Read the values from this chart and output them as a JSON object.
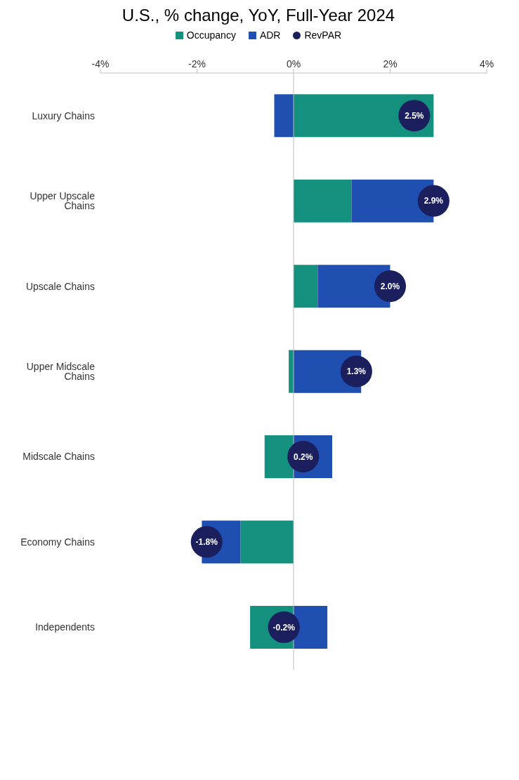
{
  "chart_data": {
    "type": "bar",
    "title": "U.S., % change, YoY, Full-Year 2024",
    "orientation": "horizontal",
    "stacked": true,
    "categories": [
      "Luxury Chains",
      "Upper Upscale Chains",
      "Upscale Chains",
      "Upper Midscale Chains",
      "Midscale Chains",
      "Economy Chains",
      "Independents"
    ],
    "series": [
      {
        "name": "Occupancy",
        "color": "#14907e",
        "values": [
          2.9,
          1.2,
          0.5,
          -0.1,
          -0.6,
          -1.1,
          -0.9
        ]
      },
      {
        "name": "ADR",
        "color": "#1f4fb0",
        "values": [
          -0.4,
          1.7,
          1.5,
          1.4,
          0.8,
          -0.8,
          0.7
        ]
      },
      {
        "name": "RevPAR",
        "type": "scatter",
        "color": "#1c1f5e",
        "values": [
          2.5,
          2.9,
          2.0,
          1.3,
          0.2,
          -1.8,
          -0.2
        ],
        "value_labels": [
          "2.5%",
          "2.9%",
          "2.0%",
          "1.3%",
          "0.2%",
          "-1.8%",
          "-0.2%"
        ]
      }
    ],
    "xlim": [
      -4,
      4
    ],
    "xticks": [
      {
        "value": -4,
        "label": "-4%"
      },
      {
        "value": -2,
        "label": "-2%"
      },
      {
        "value": 0,
        "label": "0%"
      },
      {
        "value": 2,
        "label": "2%"
      },
      {
        "value": 4,
        "label": "4%"
      }
    ],
    "ref_lines": [
      {
        "axis": "x",
        "value": 0,
        "color": "#bfbfbf"
      }
    ],
    "legend": "top",
    "grid": false
  }
}
